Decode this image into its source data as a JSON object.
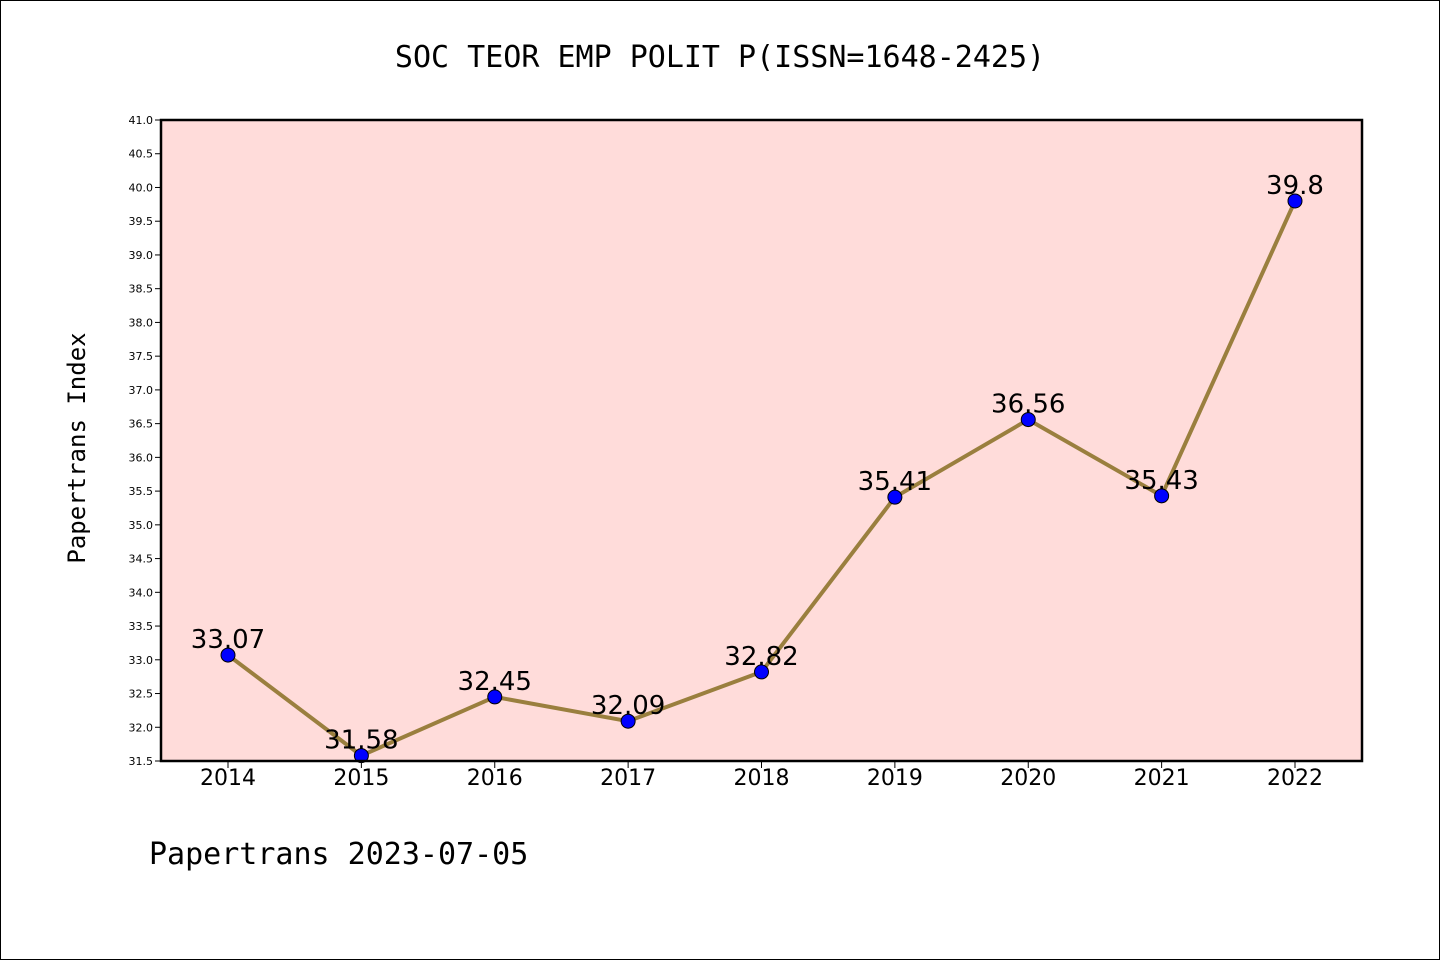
{
  "chart_data": {
    "type": "line",
    "title": "SOC TEOR EMP POLIT P(ISSN=1648-2425)",
    "ylabel": "Papertrans Index",
    "xlabel": "",
    "footer": "Papertrans 2023-07-05",
    "x": [
      "2014",
      "2015",
      "2016",
      "2017",
      "2018",
      "2019",
      "2020",
      "2021",
      "2022"
    ],
    "series": [
      {
        "values": [
          33.07,
          31.58,
          32.45,
          32.09,
          32.82,
          35.41,
          36.56,
          35.43,
          39.8
        ],
        "labels": [
          "33.07",
          "31.58",
          "32.45",
          "32.09",
          "32.82",
          "35.41",
          "36.56",
          "35.43",
          "39.8"
        ]
      }
    ],
    "ylim": [
      31.5,
      41.0
    ],
    "ytick_step": 0.5,
    "grid": false,
    "colors": {
      "plot_background": "#ffdcda",
      "line": "#9a7f3e",
      "marker": "#0000ff"
    }
  }
}
